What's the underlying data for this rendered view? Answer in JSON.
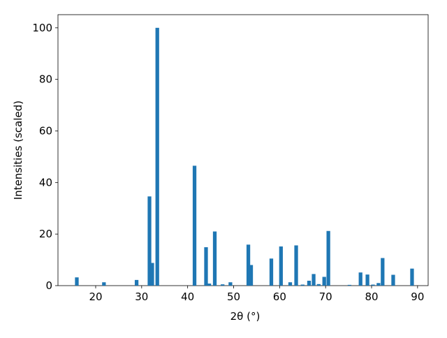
{
  "chart_data": {
    "type": "bar",
    "xlabel": "2θ (°)",
    "ylabel": "Intensities (scaled)",
    "x": [
      15.9,
      21.8,
      28.9,
      31.7,
      32.3,
      33.4,
      41.5,
      44.0,
      44.7,
      45.9,
      47.6,
      49.3,
      53.2,
      53.8,
      58.2,
      60.3,
      62.3,
      63.6,
      65.0,
      66.4,
      67.4,
      68.5,
      69.7,
      70.6,
      75.2,
      77.6,
      79.1,
      80.3,
      81.5,
      82.4,
      84.7,
      88.8
    ],
    "values": [
      3.2,
      1.3,
      2.2,
      34.6,
      8.8,
      100,
      46.5,
      14.9,
      0.8,
      21.0,
      0.5,
      1.3,
      15.9,
      8.0,
      10.5,
      15.2,
      1.3,
      15.6,
      0.4,
      1.9,
      4.5,
      0.6,
      3.4,
      21.2,
      0.3,
      5.1,
      4.3,
      0.4,
      1.0,
      10.7,
      4.2,
      6.6
    ],
    "bar_width": 0.8,
    "color": "#1f77b4",
    "xlim": [
      11.8,
      92.3
    ],
    "xticks": [
      20,
      30,
      40,
      50,
      60,
      70,
      80,
      90
    ],
    "ylim": [
      0,
      105.1
    ],
    "yticks": [
      0,
      20,
      40,
      60,
      80,
      100
    ],
    "grid": false
  }
}
